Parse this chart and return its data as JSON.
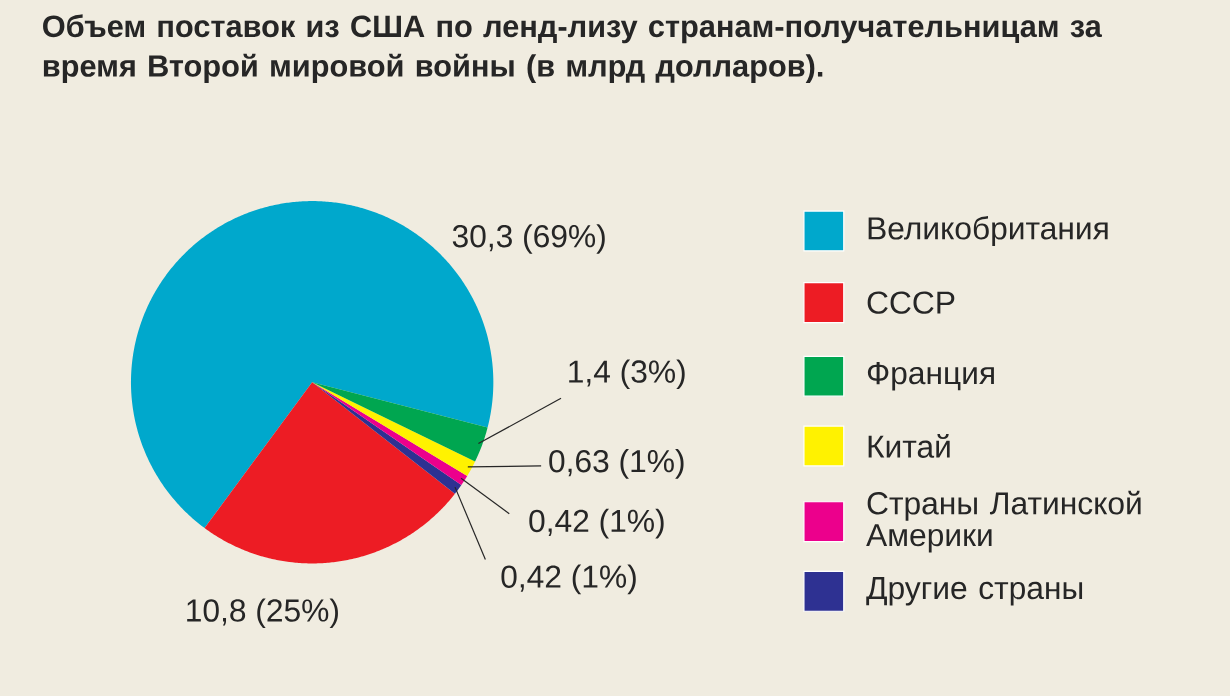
{
  "chart_data": {
    "type": "pie",
    "title": "Объем поставок из США по ленд-лизу странам-получательницам за время Второй мировой войны (в млрд долларов).",
    "categories": [
      "Великобритания",
      "СССР",
      "Франция",
      "Китай",
      "Страны Латинской Америки",
      "Другие страны"
    ],
    "values": [
      30.3,
      10.8,
      1.4,
      0.63,
      0.42,
      0.42
    ],
    "colors": [
      "#00a8cc",
      "#ed1c24",
      "#00a650",
      "#fff200",
      "#ec008c",
      "#2e3192"
    ],
    "value_labels": [
      "30,3 (69%)",
      "10,8 (25%)",
      "1,4 (3%)",
      "0,63 (1%)",
      "0,42 (1%)",
      "0,42 (1%)"
    ],
    "legend": "right"
  }
}
